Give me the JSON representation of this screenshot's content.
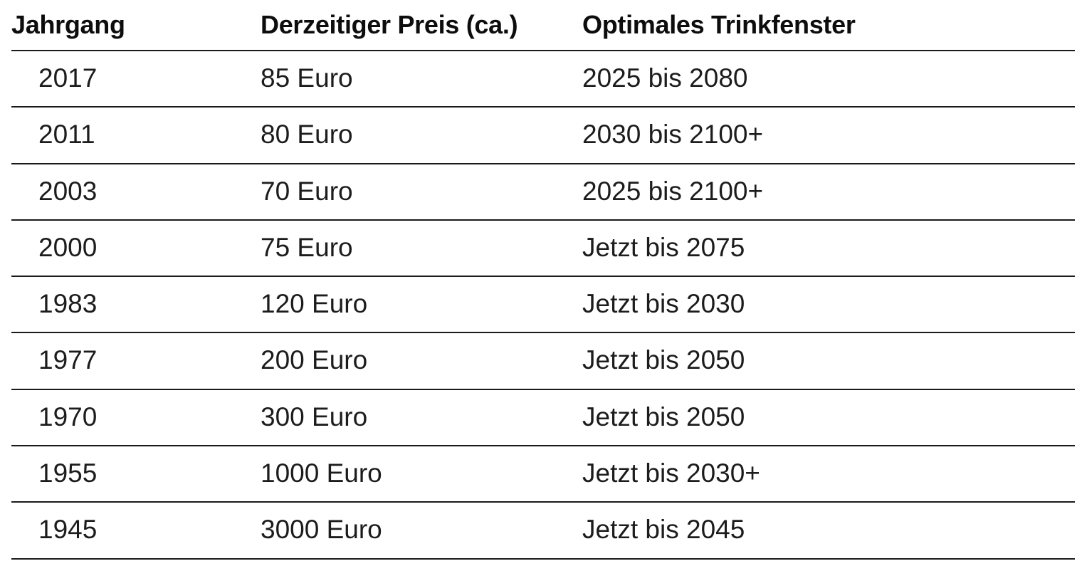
{
  "table": {
    "headers": {
      "year": "Jahrgang",
      "price": "Derzeitiger Preis (ca.)",
      "window": "Optimales Trinkfenster"
    },
    "rows": [
      {
        "year": "2017",
        "price": "85 Euro",
        "window": "2025 bis 2080"
      },
      {
        "year": "2011",
        "price": "80 Euro",
        "window": "2030 bis 2100+"
      },
      {
        "year": "2003",
        "price": "70 Euro",
        "window": "2025 bis 2100+"
      },
      {
        "year": "2000",
        "price": "75 Euro",
        "window": "Jetzt bis 2075"
      },
      {
        "year": "1983",
        "price": "120 Euro",
        "window": "Jetzt bis 2030"
      },
      {
        "year": "1977",
        "price": "200 Euro",
        "window": "Jetzt bis 2050"
      },
      {
        "year": "1970",
        "price": "300 Euro",
        "window": "Jetzt bis 2050"
      },
      {
        "year": "1955",
        "price": "1000 Euro",
        "window": "Jetzt bis 2030+"
      },
      {
        "year": "1945",
        "price": "3000 Euro",
        "window": "Jetzt bis 2045"
      }
    ]
  }
}
